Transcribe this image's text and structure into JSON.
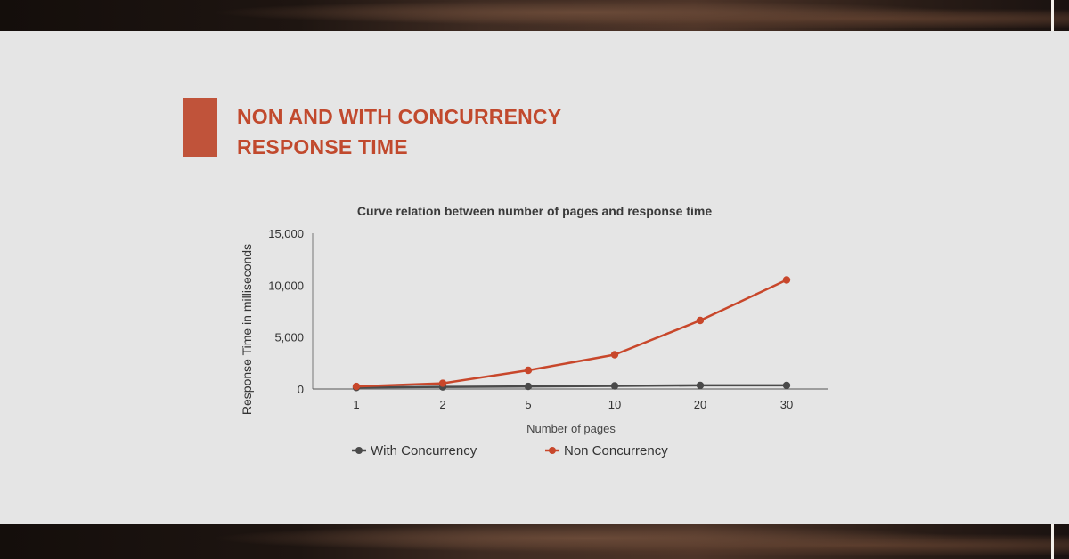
{
  "heading": {
    "line1": "NON AND WITH CONCURRENCY",
    "line2": "RESPONSE TIME"
  },
  "colors": {
    "accent": "#c0533a",
    "heading": "#c1492d",
    "non_concurrency": "#c8472b",
    "with_concurrency": "#4a4a4a",
    "panel": "#e5e5e5"
  },
  "chart_data": {
    "type": "line",
    "title": "Curve relation between number of pages and response time",
    "xlabel": "Number of pages",
    "ylabel": "Response Time in milliseconds",
    "categories": [
      "1",
      "2",
      "5",
      "10",
      "20",
      "30"
    ],
    "ylim": [
      0,
      15000
    ],
    "yticks": [
      "0",
      "5,000",
      "10,000",
      "15,000"
    ],
    "ytick_values": [
      0,
      5000,
      10000,
      15000
    ],
    "grid": false,
    "legend": "bottom",
    "series": [
      {
        "name": "With Concurrency",
        "values": [
          150,
          200,
          250,
          300,
          350,
          350
        ],
        "color": "#4a4a4a"
      },
      {
        "name": "Non Concurrency",
        "values": [
          250,
          550,
          1800,
          3300,
          6600,
          10500
        ],
        "color": "#c8472b"
      }
    ]
  }
}
